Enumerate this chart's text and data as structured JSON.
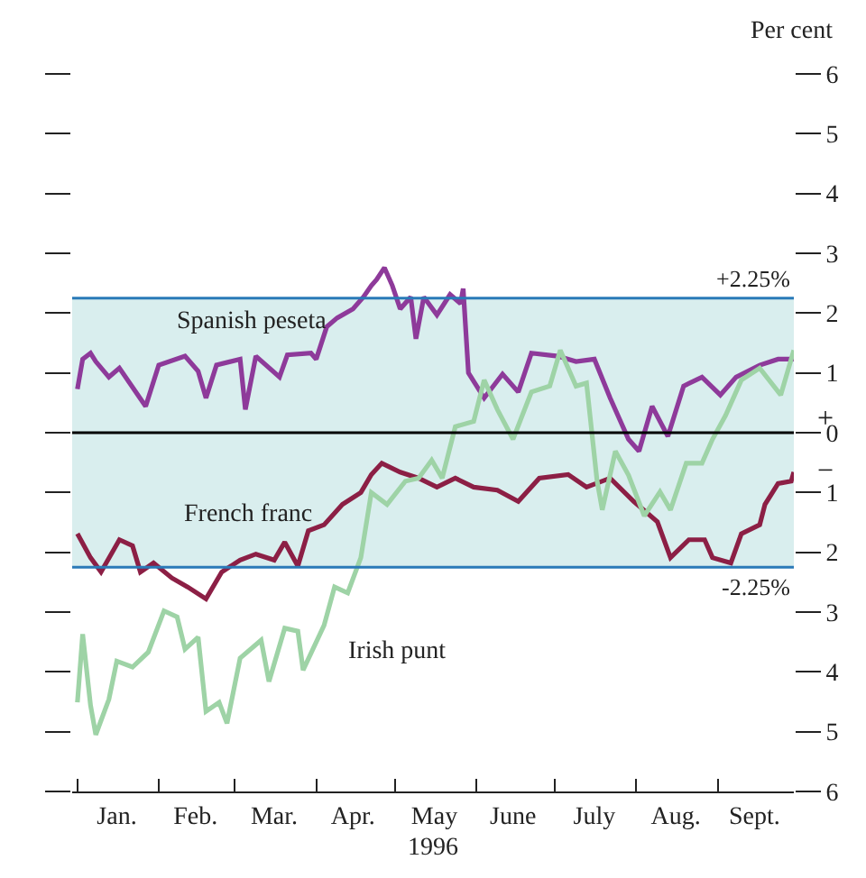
{
  "chart_data": {
    "type": "line",
    "xlabel": "1996",
    "ylabel": "Per cent",
    "xlim": [
      "1995-12-30",
      "1996-09-30"
    ],
    "xticks": [
      {
        "value": "1996-01-01",
        "label": null
      },
      {
        "value": "1996-01-16",
        "label": "Jan."
      },
      {
        "value": "1996-02-01",
        "label": null
      },
      {
        "value": "1996-02-15",
        "label": "Feb."
      },
      {
        "value": "1996-03-01",
        "label": null
      },
      {
        "value": "1996-03-16",
        "label": "Mar."
      },
      {
        "value": "1996-04-01",
        "label": null
      },
      {
        "value": "1996-04-15",
        "label": "Apr."
      },
      {
        "value": "1996-05-01",
        "label": null
      },
      {
        "value": "1996-05-16",
        "label": "May"
      },
      {
        "value": "1996-06-01",
        "label": null
      },
      {
        "value": "1996-06-15",
        "label": "June"
      },
      {
        "value": "1996-07-01",
        "label": null
      },
      {
        "value": "1996-07-16",
        "label": "July"
      },
      {
        "value": "1996-08-01",
        "label": null
      },
      {
        "value": "1996-08-16",
        "label": "Aug."
      },
      {
        "value": "1996-09-01",
        "label": null
      },
      {
        "value": "1996-09-15",
        "label": "Sept."
      }
    ],
    "ylim": [
      -6,
      6
    ],
    "yticks": [
      {
        "value": -6,
        "label": "6"
      },
      {
        "value": -5,
        "label": "5"
      },
      {
        "value": -4,
        "label": "4"
      },
      {
        "value": -3,
        "label": "3"
      },
      {
        "value": -2,
        "label": "2"
      },
      {
        "value": -1,
        "label": "1"
      },
      0,
      1,
      2,
      3,
      4,
      5,
      6
    ],
    "grid": false,
    "legend": false,
    "marker": "none",
    "line_style": "solid",
    "ref_lines": [
      {
        "axis": "y",
        "value": 2.25,
        "label": "+2.25%",
        "color": "#2a7ab8"
      },
      {
        "axis": "y",
        "value": -2.25,
        "label": "-2.25%",
        "color": "#2a7ab8"
      },
      {
        "axis": "y",
        "value": 0,
        "label": null,
        "color": "#000000"
      }
    ],
    "bands": [
      {
        "axis": "y",
        "from": -2.25,
        "to": 2.25,
        "label": null,
        "color": "#d9eeee"
      }
    ],
    "annotations": [
      "+",
      "−"
    ],
    "series": [
      {
        "name": "Spanish peseta",
        "color": "#8e3a9a",
        "x": [
          "1996-01-01",
          "1996-01-03",
          "1996-01-06",
          "1996-01-08",
          "1996-01-13",
          "1996-01-17",
          "1996-01-27",
          "1996-02-01",
          "1996-02-11",
          "1996-02-16",
          "1996-02-19",
          "1996-02-23",
          "1996-03-03",
          "1996-03-05",
          "1996-03-09",
          "1996-03-18",
          "1996-03-21",
          "1996-03-30",
          "1996-04-01",
          "1996-04-05",
          "1996-04-09",
          "1996-04-15",
          "1996-04-19",
          "1996-04-22",
          "1996-04-24",
          "1996-04-27",
          "1996-04-30",
          "1996-05-03",
          "1996-05-07",
          "1996-05-09",
          "1996-05-12",
          "1996-05-17",
          "1996-05-22",
          "1996-05-26",
          "1996-05-27",
          "1996-05-29",
          "1996-06-04",
          "1996-06-11",
          "1996-06-17",
          "1996-06-22",
          "1996-07-02",
          "1996-07-09",
          "1996-07-16",
          "1996-07-22",
          "1996-07-29",
          "1996-08-02",
          "1996-08-07",
          "1996-08-13",
          "1996-08-19",
          "1996-08-26",
          "1996-09-02",
          "1996-09-08",
          "1996-09-17",
          "1996-09-24",
          "1996-09-30"
        ],
        "values": [
          0.73,
          1.23,
          1.33,
          1.19,
          0.93,
          1.08,
          0.44,
          1.13,
          1.28,
          1.03,
          0.58,
          1.13,
          1.23,
          0.39,
          1.28,
          0.93,
          1.3,
          1.33,
          1.23,
          1.77,
          1.92,
          2.07,
          2.27,
          2.46,
          2.56,
          2.76,
          2.46,
          2.07,
          2.27,
          1.57,
          2.27,
          1.97,
          2.31,
          2.16,
          2.41,
          1.0,
          0.58,
          0.98,
          0.68,
          1.33,
          1.28,
          1.19,
          1.23,
          0.58,
          -0.11,
          -0.31,
          0.44,
          -0.06,
          0.78,
          0.93,
          0.63,
          0.93,
          1.13,
          1.23,
          1.23
        ]
      },
      {
        "name": "French franc",
        "color": "#8c1f45",
        "x": [
          "1996-01-01",
          "1996-01-06",
          "1996-01-10",
          "1996-01-17",
          "1996-01-22",
          "1996-01-25",
          "1996-01-30",
          "1996-02-06",
          "1996-02-12",
          "1996-02-19",
          "1996-02-25",
          "1996-03-03",
          "1996-03-09",
          "1996-03-16",
          "1996-03-20",
          "1996-03-25",
          "1996-03-29",
          "1996-04-04",
          "1996-04-11",
          "1996-04-18",
          "1996-04-22",
          "1996-04-26",
          "1996-05-03",
          "1996-05-10",
          "1996-05-17",
          "1996-05-24",
          "1996-05-31",
          "1996-06-09",
          "1996-06-17",
          "1996-06-25",
          "1996-07-06",
          "1996-07-13",
          "1996-07-22",
          "1996-07-31",
          "1996-08-09",
          "1996-08-14",
          "1996-08-21",
          "1996-08-27",
          "1996-08-30",
          "1996-09-06",
          "1996-09-10",
          "1996-09-17",
          "1996-09-19",
          "1996-09-24",
          "1996-09-29",
          "1996-09-30"
        ],
        "values": [
          -1.69,
          -2.09,
          -2.33,
          -1.79,
          -1.89,
          -2.33,
          -2.18,
          -2.43,
          -2.58,
          -2.78,
          -2.33,
          -2.13,
          -2.03,
          -2.13,
          -1.83,
          -2.23,
          -1.64,
          -1.54,
          -1.2,
          -1.0,
          -0.7,
          -0.51,
          -0.66,
          -0.76,
          -0.91,
          -0.76,
          -0.91,
          -0.96,
          -1.15,
          -0.76,
          -0.7,
          -0.91,
          -0.76,
          -1.15,
          -1.49,
          -2.09,
          -1.79,
          -1.79,
          -2.09,
          -2.18,
          -1.69,
          -1.54,
          -1.2,
          -0.85,
          -0.81,
          -0.66
        ]
      },
      {
        "name": "Irish punt",
        "color": "#9ed3a6",
        "x": [
          "1996-01-01",
          "1996-01-03",
          "1996-01-06",
          "1996-01-08",
          "1996-01-13",
          "1996-01-16",
          "1996-01-22",
          "1996-01-28",
          "1996-02-03",
          "1996-02-08",
          "1996-02-11",
          "1996-02-16",
          "1996-02-19",
          "1996-02-24",
          "1996-02-27",
          "1996-03-03",
          "1996-03-11",
          "1996-03-14",
          "1996-03-20",
          "1996-03-25",
          "1996-03-27",
          "1996-04-04",
          "1996-04-08",
          "1996-04-13",
          "1996-04-18",
          "1996-04-22",
          "1996-04-28",
          "1996-05-05",
          "1996-05-10",
          "1996-05-15",
          "1996-05-19",
          "1996-05-24",
          "1996-05-31",
          "1996-06-04",
          "1996-06-09",
          "1996-06-15",
          "1996-06-22",
          "1996-06-29",
          "1996-07-03",
          "1996-07-09",
          "1996-07-13",
          "1996-07-17",
          "1996-07-19",
          "1996-07-24",
          "1996-07-29",
          "1996-08-04",
          "1996-08-10",
          "1996-08-14",
          "1996-08-20",
          "1996-08-26",
          "1996-08-30",
          "1996-09-04",
          "1996-09-10",
          "1996-09-17",
          "1996-09-25",
          "1996-09-30"
        ],
        "values": [
          -4.51,
          -3.37,
          -4.56,
          -5.05,
          -4.46,
          -3.82,
          -3.92,
          -3.67,
          -2.98,
          -3.08,
          -3.62,
          -3.42,
          -4.66,
          -4.51,
          -4.86,
          -3.77,
          -3.47,
          -4.16,
          -3.27,
          -3.32,
          -3.97,
          -3.22,
          -2.58,
          -2.68,
          -2.09,
          -1.0,
          -1.2,
          -0.81,
          -0.76,
          -0.46,
          -0.76,
          0.1,
          0.19,
          0.88,
          0.39,
          -0.11,
          0.68,
          0.78,
          1.38,
          0.78,
          0.83,
          -0.8,
          -1.29,
          -0.31,
          -0.71,
          -1.39,
          -0.99,
          -1.29,
          -0.51,
          -0.51,
          -0.11,
          0.29,
          0.88,
          1.08,
          0.63,
          1.38
        ]
      }
    ]
  }
}
